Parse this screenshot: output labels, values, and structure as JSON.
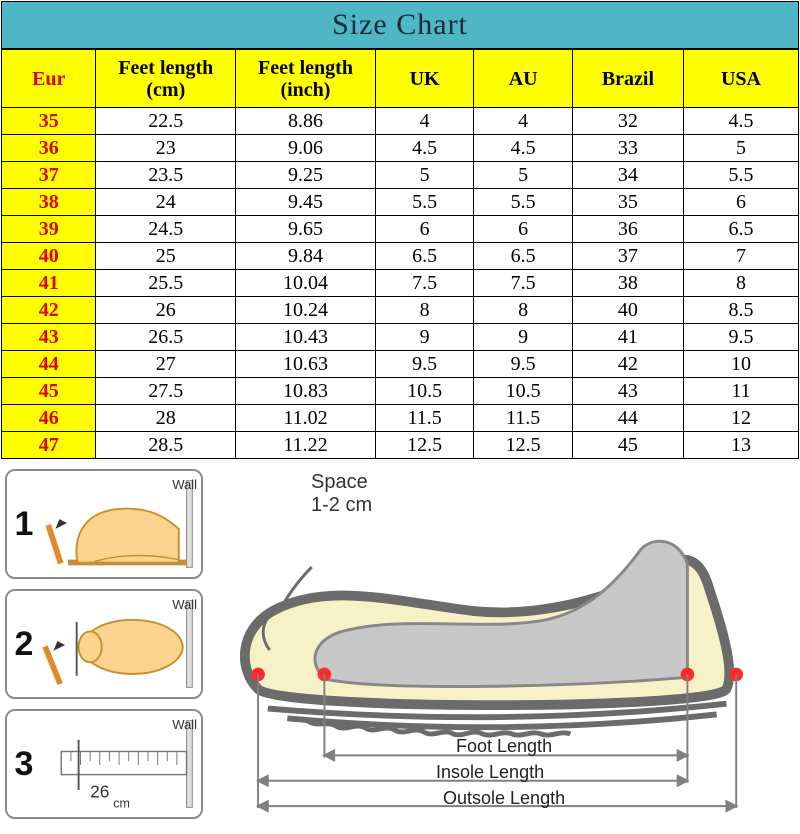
{
  "title": "Size Chart",
  "colors": {
    "title_bg": "#4eb6c4",
    "header_bg": "#ffff00",
    "eur_text": "#e00000",
    "border": "#000000",
    "shoe_outline": "#6b6b6b",
    "shoe_fill": "#f7f1c7",
    "foot_outline": "#c59030",
    "foot_fill": "#fcd490",
    "pencil": "#e08a2e",
    "measure_line": "#808080",
    "dot": "#ff2a2a"
  },
  "columns": {
    "eur": "Eur",
    "cm": "Feet length (cm)",
    "inch": "Feet length (inch)",
    "uk": "UK",
    "au": "AU",
    "brazil": "Brazil",
    "usa": "USA"
  },
  "rows": [
    {
      "eur": "35",
      "cm": "22.5",
      "in": "8.86",
      "uk": "4",
      "au": "4",
      "br": "32",
      "us": "4.5"
    },
    {
      "eur": "36",
      "cm": "23",
      "in": "9.06",
      "uk": "4.5",
      "au": "4.5",
      "br": "33",
      "us": "5"
    },
    {
      "eur": "37",
      "cm": "23.5",
      "in": "9.25",
      "uk": "5",
      "au": "5",
      "br": "34",
      "us": "5.5"
    },
    {
      "eur": "38",
      "cm": "24",
      "in": "9.45",
      "uk": "5.5",
      "au": "5.5",
      "br": "35",
      "us": "6"
    },
    {
      "eur": "39",
      "cm": "24.5",
      "in": "9.65",
      "uk": "6",
      "au": "6",
      "br": "36",
      "us": "6.5"
    },
    {
      "eur": "40",
      "cm": "25",
      "in": "9.84",
      "uk": "6.5",
      "au": "6.5",
      "br": "37",
      "us": "7"
    },
    {
      "eur": "41",
      "cm": "25.5",
      "in": "10.04",
      "uk": "7.5",
      "au": "7.5",
      "br": "38",
      "us": "8"
    },
    {
      "eur": "42",
      "cm": "26",
      "in": "10.24",
      "uk": "8",
      "au": "8",
      "br": "40",
      "us": "8.5"
    },
    {
      "eur": "43",
      "cm": "26.5",
      "in": "10.43",
      "uk": "9",
      "au": "9",
      "br": "41",
      "us": "9.5"
    },
    {
      "eur": "44",
      "cm": "27",
      "in": "10.63",
      "uk": "9.5",
      "au": "9.5",
      "br": "42",
      "us": "10"
    },
    {
      "eur": "45",
      "cm": "27.5",
      "in": "10.83",
      "uk": "10.5",
      "au": "10.5",
      "br": "43",
      "us": "11"
    },
    {
      "eur": "46",
      "cm": "28",
      "in": "11.02",
      "uk": "11.5",
      "au": "11.5",
      "br": "44",
      "us": "12"
    },
    {
      "eur": "47",
      "cm": "28.5",
      "in": "11.22",
      "uk": "12.5",
      "au": "12.5",
      "br": "45",
      "us": "13"
    }
  ],
  "steps": {
    "items": [
      {
        "num": "1",
        "wall": "Wall"
      },
      {
        "num": "2",
        "wall": "Wall"
      },
      {
        "num": "3",
        "wall": "Wall",
        "ruler_cm": "26",
        "ruler_unit": "cm"
      }
    ]
  },
  "shoe": {
    "space_line1": "Space",
    "space_line2": "1-2 cm",
    "foot_len": "Foot Length",
    "insole_len": "Insole Length",
    "outsole_len": "Outsole Length"
  }
}
